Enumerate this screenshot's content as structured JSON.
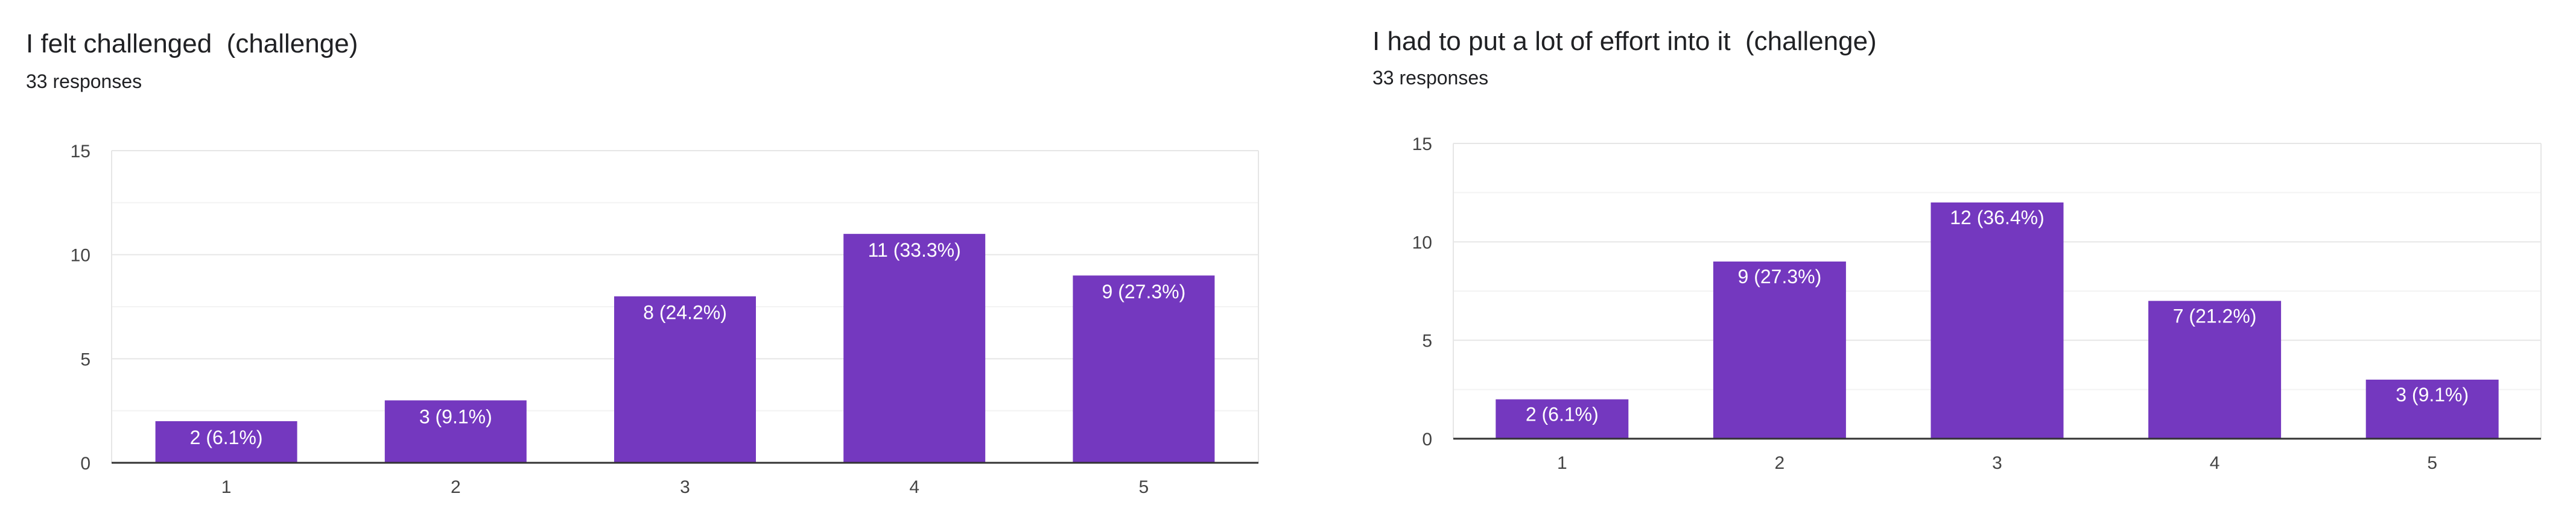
{
  "colors": {
    "bar": "#7438bf",
    "grid": "#e6e6e6",
    "minor_grid": "#f3f3f3",
    "axis": "#333333",
    "text": "#202124"
  },
  "chart_data": [
    {
      "type": "bar",
      "title": "I felt challenged  (challenge)",
      "subtitle": "33 responses",
      "categories": [
        "1",
        "2",
        "3",
        "4",
        "5"
      ],
      "values": [
        2,
        3,
        8,
        11,
        9
      ],
      "data_labels": [
        "2 (6.1%)",
        "3 (9.1%)",
        "8 (24.2%)",
        "11 (33.3%)",
        "9 (27.3%)"
      ],
      "yticks": [
        "0",
        "5",
        "10",
        "15"
      ],
      "ylim": [
        0,
        15
      ],
      "xlabel": "",
      "ylabel": "",
      "grid": true
    },
    {
      "type": "bar",
      "title": "I had to put a lot of effort into it  (challenge)",
      "subtitle": "33 responses",
      "categories": [
        "1",
        "2",
        "3",
        "4",
        "5"
      ],
      "values": [
        2,
        9,
        12,
        7,
        3
      ],
      "data_labels": [
        "2 (6.1%)",
        "9 (27.3%)",
        "12 (36.4%)",
        "7 (21.2%)",
        "3 (9.1%)"
      ],
      "yticks": [
        "0",
        "5",
        "10",
        "15"
      ],
      "ylim": [
        0,
        15
      ],
      "xlabel": "",
      "ylabel": "",
      "grid": true
    }
  ]
}
